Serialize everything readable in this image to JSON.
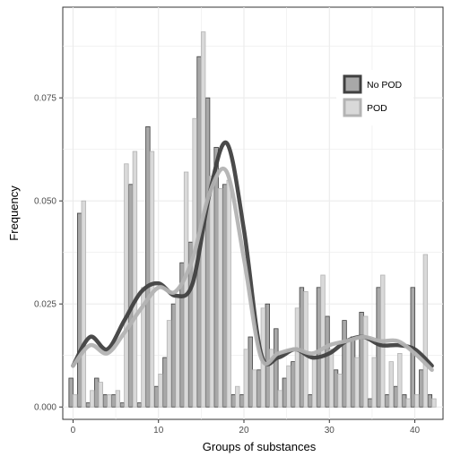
{
  "chart_data": {
    "type": "bar",
    "xlabel": "Groups of substances",
    "ylabel": "Frequency",
    "xlim": [
      -1.2,
      43.3
    ],
    "ylim": [
      -0.003,
      0.097
    ],
    "x_ticks": [
      0,
      10,
      20,
      30,
      40
    ],
    "y_ticks": [
      0.0,
      0.025,
      0.05,
      0.075
    ],
    "y_tick_labels": [
      "0.000",
      "0.025",
      "0.050",
      "0.075"
    ],
    "grid": true,
    "legend_position": "top-right",
    "colors": {
      "no_pod": "#404040",
      "pod": "#b3b3b3",
      "no_pod_fill": "#a8a8a8",
      "pod_fill": "#d9d9d9"
    },
    "x": [
      0,
      1,
      2,
      3,
      4,
      5,
      6,
      7,
      8,
      9,
      10,
      11,
      12,
      13,
      14,
      15,
      16,
      17,
      18,
      19,
      20,
      21,
      22,
      23,
      24,
      25,
      26,
      27,
      28,
      29,
      30,
      31,
      32,
      33,
      34,
      35,
      36,
      37,
      38,
      39,
      40,
      41,
      42
    ],
    "series": [
      {
        "name": "No POD",
        "values": [
          0.007,
          0.047,
          0.001,
          0.007,
          0.003,
          0.003,
          0.001,
          0.054,
          0.001,
          0.068,
          0.005,
          0.012,
          0.025,
          0.035,
          0.04,
          0.085,
          0.075,
          0.063,
          0.054,
          0.003,
          0.003,
          0.017,
          0.009,
          0.025,
          0.019,
          0.007,
          0.011,
          0.029,
          0.003,
          0.029,
          0.022,
          0.009,
          0.021,
          0.017,
          0.023,
          0.002,
          0.029,
          0.003,
          0.005,
          0.003,
          0.029,
          0.009,
          0.003
        ],
        "density_x": [
          0,
          2,
          4,
          6,
          8,
          10,
          12,
          14,
          16,
          18,
          20,
          22,
          24,
          26,
          28,
          30,
          32,
          34,
          36,
          38,
          40,
          42
        ],
        "density_y": [
          0.01,
          0.017,
          0.014,
          0.021,
          0.028,
          0.03,
          0.027,
          0.03,
          0.052,
          0.064,
          0.043,
          0.013,
          0.012,
          0.014,
          0.012,
          0.013,
          0.016,
          0.017,
          0.015,
          0.015,
          0.014,
          0.01
        ]
      },
      {
        "name": "POD",
        "values": [
          0.003,
          0.05,
          0.004,
          0.006,
          0.003,
          0.004,
          0.059,
          0.062,
          0.029,
          0.062,
          0.008,
          0.021,
          0.027,
          0.057,
          0.07,
          0.091,
          0.056,
          0.053,
          0.055,
          0.005,
          0.014,
          0.009,
          0.024,
          0.014,
          0.004,
          0.01,
          0.024,
          0.028,
          0.012,
          0.032,
          0.014,
          0.008,
          0.016,
          0.012,
          0.022,
          0.012,
          0.032,
          0.011,
          0.013,
          0.002,
          0.003,
          0.037,
          0.002
        ],
        "density_x": [
          0,
          2,
          4,
          6,
          8,
          10,
          12,
          14,
          16,
          18,
          20,
          22,
          24,
          26,
          28,
          30,
          32,
          34,
          36,
          38,
          40,
          42
        ],
        "density_y": [
          0.01,
          0.015,
          0.013,
          0.018,
          0.024,
          0.029,
          0.028,
          0.036,
          0.052,
          0.057,
          0.036,
          0.012,
          0.013,
          0.014,
          0.013,
          0.015,
          0.016,
          0.017,
          0.016,
          0.016,
          0.013,
          0.009
        ]
      }
    ]
  }
}
